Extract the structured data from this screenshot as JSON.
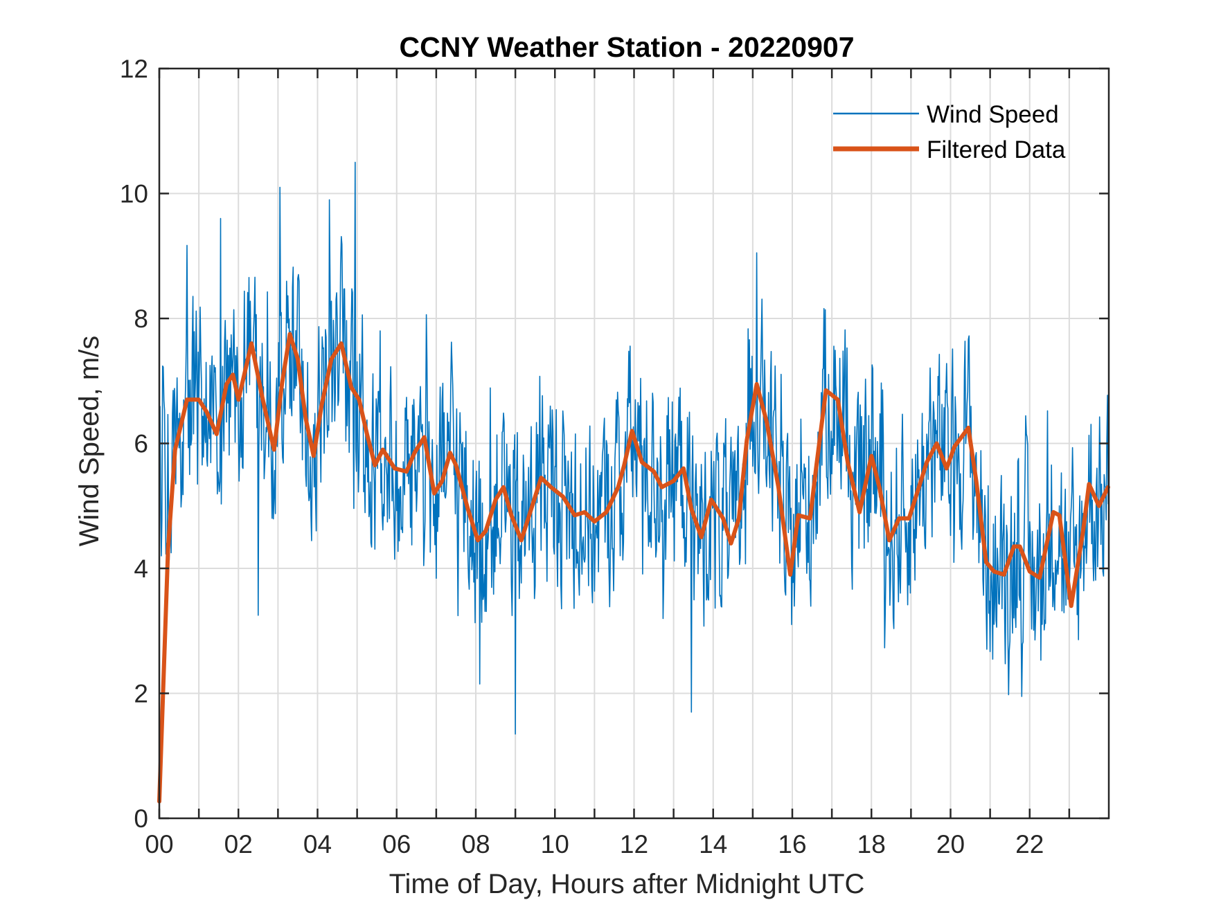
{
  "chart_data": {
    "type": "line",
    "title": "CCNY Weather Station - 20220907",
    "xlabel": "Time of Day, Hours after Midnight UTC",
    "ylabel": "Wind Speed, m/s",
    "xlim": [
      0,
      24
    ],
    "ylim": [
      0,
      12
    ],
    "x_tick_values": [
      0,
      2,
      4,
      6,
      8,
      10,
      12,
      14,
      16,
      18,
      20,
      22
    ],
    "x_tick_labels": [
      "00",
      "02",
      "04",
      "06",
      "08",
      "10",
      "12",
      "14",
      "16",
      "18",
      "20",
      "22"
    ],
    "x_grid_step_hours": 1,
    "y_tick_values": [
      0,
      2,
      4,
      6,
      8,
      10,
      12
    ],
    "y_tick_labels": [
      "0",
      "2",
      "4",
      "6",
      "8",
      "10",
      "12"
    ],
    "grid": true,
    "legend": {
      "position": "top-right",
      "entries": [
        "Wind Speed",
        "Filtered Data"
      ]
    },
    "colors": {
      "wind_speed": "#0072BD",
      "filtered": "#D95319",
      "grid": "#dcdcdc",
      "axis": "#262626"
    },
    "series": [
      {
        "name": "Wind Speed",
        "description": "raw 1-minute samples, noisy around the filtered trend",
        "sample_interval_hours": 0.0166667,
        "noise_amplitude_ms": 1.6,
        "min": 1.35,
        "max": 10.5,
        "notable_points": [
          {
            "x": 4.95,
            "y": 10.5
          },
          {
            "x": 3.05,
            "y": 10.1
          },
          {
            "x": 4.3,
            "y": 9.9
          },
          {
            "x": 1.55,
            "y": 9.6
          },
          {
            "x": 15.1,
            "y": 9.05
          },
          {
            "x": 9.0,
            "y": 1.35
          },
          {
            "x": 13.45,
            "y": 1.7
          },
          {
            "x": 21.8,
            "y": 1.95
          },
          {
            "x": 8.1,
            "y": 2.15
          },
          {
            "x": 2.5,
            "y": 3.25
          }
        ]
      },
      {
        "name": "Filtered Data",
        "x": [
          0.0,
          0.22,
          0.4,
          0.7,
          1.0,
          1.2,
          1.45,
          1.7,
          1.86,
          2.0,
          2.33,
          2.6,
          2.9,
          3.1,
          3.3,
          3.5,
          3.7,
          3.9,
          4.1,
          4.35,
          4.6,
          4.85,
          5.05,
          5.25,
          5.45,
          5.65,
          5.95,
          6.25,
          6.45,
          6.7,
          6.95,
          7.15,
          7.35,
          7.5,
          7.8,
          8.05,
          8.25,
          8.5,
          8.7,
          8.9,
          9.15,
          9.4,
          9.65,
          9.9,
          10.2,
          10.5,
          10.75,
          11.0,
          11.3,
          11.6,
          11.75,
          11.95,
          12.2,
          12.5,
          12.7,
          13.0,
          13.25,
          13.45,
          13.7,
          13.95,
          14.25,
          14.45,
          14.65,
          14.85,
          15.1,
          15.35,
          15.65,
          15.95,
          16.15,
          16.45,
          16.6,
          16.85,
          17.15,
          17.4,
          17.7,
          18.0,
          18.2,
          18.45,
          18.7,
          18.95,
          19.2,
          19.4,
          19.65,
          19.9,
          20.1,
          20.45,
          20.65,
          20.9,
          21.1,
          21.35,
          21.6,
          21.75,
          22.0,
          22.25,
          22.6,
          22.75,
          23.05,
          23.35,
          23.5,
          23.75,
          23.98
        ],
        "values": [
          0.27,
          4.3,
          5.9,
          6.7,
          6.7,
          6.5,
          6.15,
          6.95,
          7.1,
          6.7,
          7.6,
          6.75,
          5.9,
          6.95,
          7.75,
          7.35,
          6.4,
          5.8,
          6.6,
          7.35,
          7.6,
          6.9,
          6.7,
          6.15,
          5.65,
          5.9,
          5.6,
          5.55,
          5.85,
          6.1,
          5.2,
          5.4,
          5.85,
          5.65,
          4.95,
          4.45,
          4.6,
          5.1,
          5.3,
          4.85,
          4.45,
          4.95,
          5.45,
          5.3,
          5.15,
          4.85,
          4.9,
          4.75,
          4.9,
          5.3,
          5.65,
          6.2,
          5.7,
          5.55,
          5.3,
          5.4,
          5.6,
          4.95,
          4.5,
          5.1,
          4.8,
          4.4,
          4.8,
          6.05,
          6.95,
          6.35,
          5.3,
          3.9,
          4.85,
          4.8,
          5.6,
          6.85,
          6.7,
          5.7,
          4.9,
          5.8,
          5.3,
          4.45,
          4.8,
          4.8,
          5.3,
          5.7,
          6.0,
          5.6,
          5.95,
          6.25,
          5.4,
          4.1,
          3.95,
          3.9,
          4.35,
          4.35,
          3.95,
          3.85,
          4.9,
          4.85,
          3.4,
          4.6,
          5.35,
          5.0,
          5.3
        ]
      }
    ]
  }
}
